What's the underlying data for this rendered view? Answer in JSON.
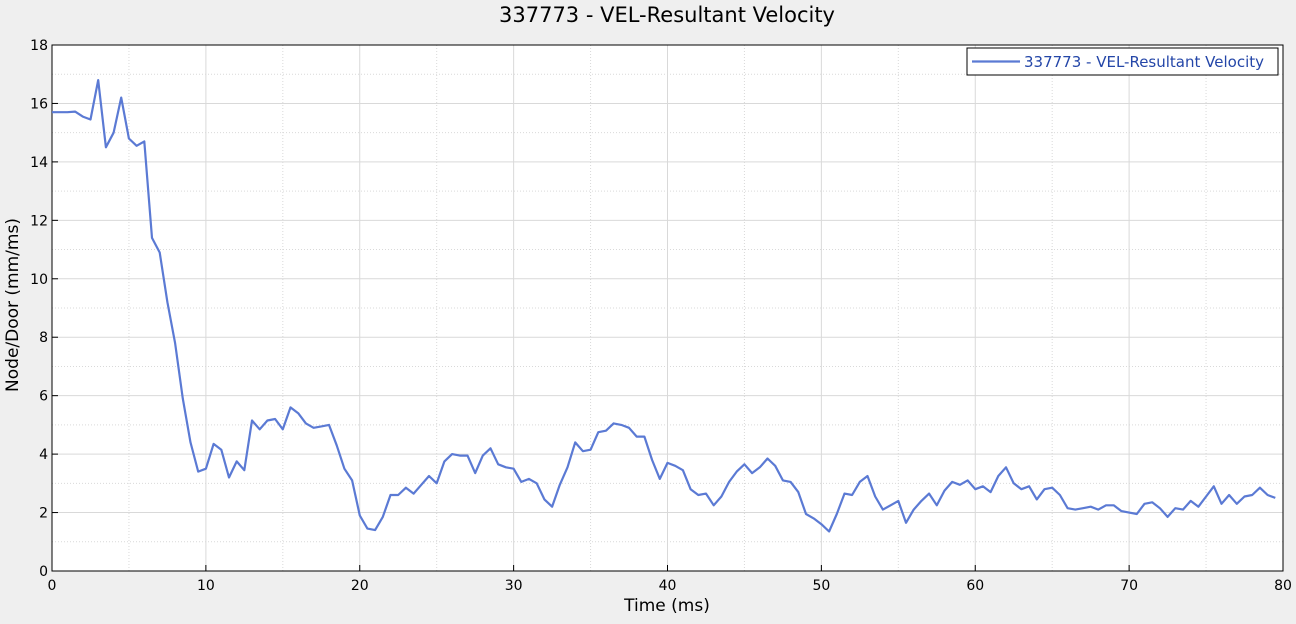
{
  "chart_data": {
    "type": "line",
    "title": "337773 - VEL-Resultant Velocity",
    "xlabel": "Time (ms)",
    "ylabel": "Node/Door (mm/ms)",
    "xlim": [
      0,
      80
    ],
    "ylim": [
      0,
      18
    ],
    "x_ticks": [
      "0",
      "10",
      "20",
      "30",
      "40",
      "50",
      "60",
      "70",
      "80"
    ],
    "y_ticks": [
      "0",
      "2",
      "4",
      "6",
      "8",
      "10",
      "12",
      "14",
      "16",
      "18"
    ],
    "grid": true,
    "legend_position": "top-right",
    "colors": {
      "series": "#5b7ad4",
      "plot_bg": "#ffffff",
      "page_bg": "#efefef",
      "grid": "#d9d9d9"
    },
    "series": [
      {
        "name": "337773 - VEL-Resultant Velocity",
        "x": [
          0,
          0.5,
          1.0,
          1.5,
          2.0,
          2.5,
          3.0,
          3.5,
          4.0,
          4.5,
          5.0,
          5.5,
          6.0,
          6.5,
          7.0,
          7.5,
          8.0,
          8.5,
          9.0,
          9.5,
          10.0,
          10.5,
          11.0,
          11.5,
          12.0,
          12.5,
          13.0,
          13.5,
          14.0,
          14.5,
          15.0,
          15.5,
          16.0,
          16.5,
          17.0,
          17.5,
          18.0,
          18.5,
          19.0,
          19.5,
          20.0,
          20.5,
          21.0,
          21.5,
          22.0,
          22.5,
          23.0,
          23.5,
          24.0,
          24.5,
          25.0,
          25.5,
          26.0,
          26.5,
          27.0,
          27.5,
          28.0,
          28.5,
          29.0,
          29.5,
          30.0,
          30.5,
          31.0,
          31.5,
          32.0,
          32.5,
          33.0,
          33.5,
          34.0,
          34.5,
          35.0,
          35.5,
          36.0,
          36.5,
          37.0,
          37.5,
          38.0,
          38.5,
          39.0,
          39.5,
          40.0,
          40.5,
          41.0,
          41.5,
          42.0,
          42.5,
          43.0,
          43.5,
          44.0,
          44.5,
          45.0,
          45.5,
          46.0,
          46.5,
          47.0,
          47.5,
          48.0,
          48.5,
          49.0,
          49.5,
          50.0,
          50.5,
          51.0,
          51.5,
          52.0,
          52.5,
          53.0,
          53.5,
          54.0,
          54.5,
          55.0,
          55.5,
          56.0,
          56.5,
          57.0,
          57.5,
          58.0,
          58.5,
          59.0,
          59.5,
          60.0,
          60.5,
          61.0,
          61.5,
          62.0,
          62.5,
          63.0,
          63.5,
          64.0,
          64.5,
          65.0,
          65.5,
          66.0,
          66.5,
          67.0,
          67.5,
          68.0,
          68.5,
          69.0,
          69.5,
          70.0,
          70.5,
          71.0,
          71.5,
          72.0,
          72.5,
          73.0,
          73.5,
          74.0,
          74.5,
          75.0,
          75.5,
          76.0,
          76.5,
          77.0,
          77.5,
          78.0,
          78.5,
          79.0,
          79.5
        ],
        "y": [
          15.7,
          15.7,
          15.7,
          15.72,
          15.55,
          15.45,
          16.8,
          14.5,
          15.0,
          16.2,
          14.8,
          14.55,
          14.7,
          11.4,
          10.9,
          9.2,
          7.8,
          5.9,
          4.4,
          3.4,
          3.5,
          4.35,
          4.15,
          3.2,
          3.75,
          3.45,
          5.15,
          4.85,
          5.15,
          5.2,
          4.85,
          5.6,
          5.4,
          5.05,
          4.9,
          4.95,
          5.0,
          4.3,
          3.5,
          3.1,
          1.9,
          1.45,
          1.4,
          1.85,
          2.6,
          2.6,
          2.85,
          2.65,
          2.95,
          3.25,
          3.0,
          3.75,
          4.0,
          3.95,
          3.95,
          3.35,
          3.95,
          4.2,
          3.65,
          3.55,
          3.5,
          3.05,
          3.15,
          3.0,
          2.45,
          2.2,
          2.95,
          3.55,
          4.4,
          4.1,
          4.15,
          4.75,
          4.8,
          5.05,
          5.0,
          4.9,
          4.6,
          4.6,
          3.8,
          3.15,
          3.7,
          3.6,
          3.45,
          2.8,
          2.6,
          2.65,
          2.25,
          2.55,
          3.05,
          3.4,
          3.65,
          3.35,
          3.55,
          3.85,
          3.6,
          3.1,
          3.05,
          2.7,
          1.95,
          1.8,
          1.6,
          1.35,
          1.95,
          2.65,
          2.6,
          3.05,
          3.25,
          2.55,
          2.1,
          2.25,
          2.4,
          1.65,
          2.1,
          2.4,
          2.65,
          2.25,
          2.75,
          3.05,
          2.95,
          3.1,
          2.8,
          2.9,
          2.7,
          3.25,
          3.55,
          3.0,
          2.8,
          2.9,
          2.45,
          2.8,
          2.85,
          2.6,
          2.15,
          2.1,
          2.15,
          2.2,
          2.1,
          2.25,
          2.25,
          2.05,
          2.0,
          1.95,
          2.3,
          2.35,
          2.15,
          1.85,
          2.15,
          2.1,
          2.4,
          2.2,
          2.55,
          2.9,
          2.3,
          2.6,
          2.3,
          2.55,
          2.6,
          2.85,
          2.6,
          2.5
        ]
      }
    ]
  }
}
